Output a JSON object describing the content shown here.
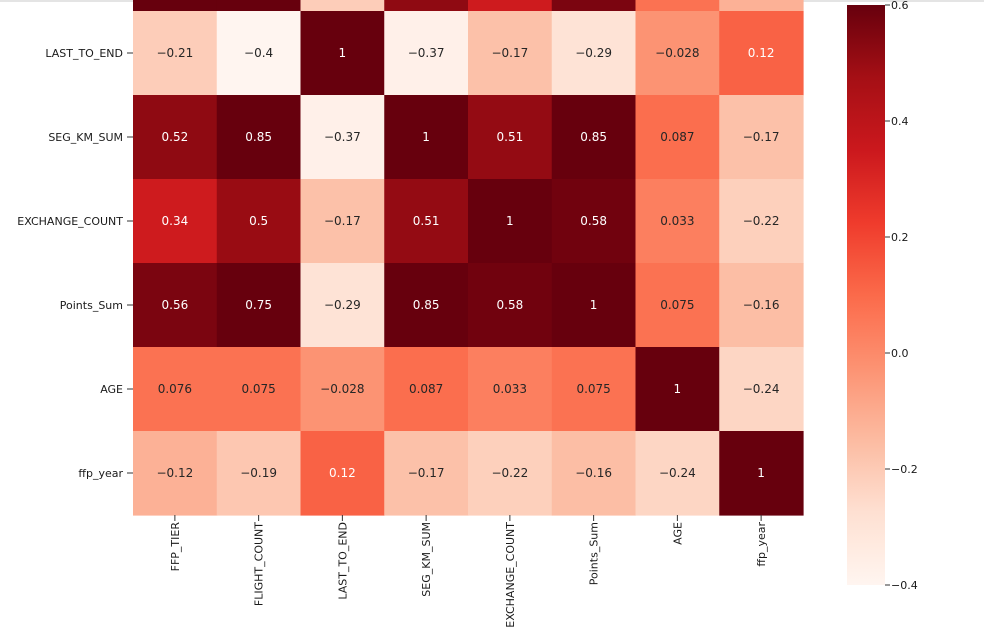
{
  "chart_data": {
    "type": "heatmap",
    "title": "",
    "colormap": "Reds",
    "vmin": -0.4,
    "vmax": 0.6,
    "annotated": true,
    "top_row_partially_visible": true,
    "rows": [
      "LAST_TO_END",
      "SEG_KM_SUM",
      "EXCHANGE_COUNT",
      "Points_Sum",
      "AGE",
      "ffp_year"
    ],
    "columns": [
      "FFP_TIER",
      "FLIGHT_COUNT",
      "LAST_TO_END",
      "SEG_KM_SUM",
      "EXCHANGE_COUNT",
      "Points_Sum",
      "AGE",
      "ffp_year"
    ],
    "top_partial_row_values": [
      0.6,
      0.85,
      -0.21,
      0.52,
      0.34,
      0.56,
      0.076,
      -0.12
    ],
    "values": [
      [
        -0.21,
        -0.4,
        1,
        -0.37,
        -0.17,
        -0.29,
        -0.028,
        0.12
      ],
      [
        0.52,
        0.85,
        -0.37,
        1,
        0.51,
        0.85,
        0.087,
        -0.17
      ],
      [
        0.34,
        0.5,
        -0.17,
        0.51,
        1,
        0.58,
        0.033,
        -0.22
      ],
      [
        0.56,
        0.75,
        -0.29,
        0.85,
        0.58,
        1,
        0.075,
        -0.16
      ],
      [
        0.076,
        0.075,
        -0.028,
        0.087,
        0.033,
        0.075,
        1,
        -0.24
      ],
      [
        -0.12,
        -0.19,
        0.12,
        -0.17,
        -0.22,
        -0.16,
        -0.24,
        1
      ]
    ],
    "labels": [
      [
        "−0.21",
        "−0.4",
        "1",
        "−0.37",
        "−0.17",
        "−0.29",
        "−0.028",
        "0.12"
      ],
      [
        "0.52",
        "0.85",
        "−0.37",
        "1",
        "0.51",
        "0.85",
        "0.087",
        "−0.17"
      ],
      [
        "0.34",
        "0.5",
        "−0.17",
        "0.51",
        "1",
        "0.58",
        "0.033",
        "−0.22"
      ],
      [
        "0.56",
        "0.75",
        "−0.29",
        "0.85",
        "0.58",
        "1",
        "0.075",
        "−0.16"
      ],
      [
        "0.076",
        "0.075",
        "−0.028",
        "0.087",
        "0.033",
        "0.075",
        "1",
        "−0.24"
      ],
      [
        "−0.12",
        "−0.19",
        "0.12",
        "−0.17",
        "−0.22",
        "−0.16",
        "−0.24",
        "1"
      ]
    ],
    "colorbar": {
      "ticks": [
        0.6,
        0.4,
        0.2,
        0.0,
        -0.2,
        -0.4
      ],
      "tick_labels": [
        "0.6",
        "0.4",
        "0.2",
        "0.0",
        "−0.2",
        "−0.4"
      ]
    }
  }
}
